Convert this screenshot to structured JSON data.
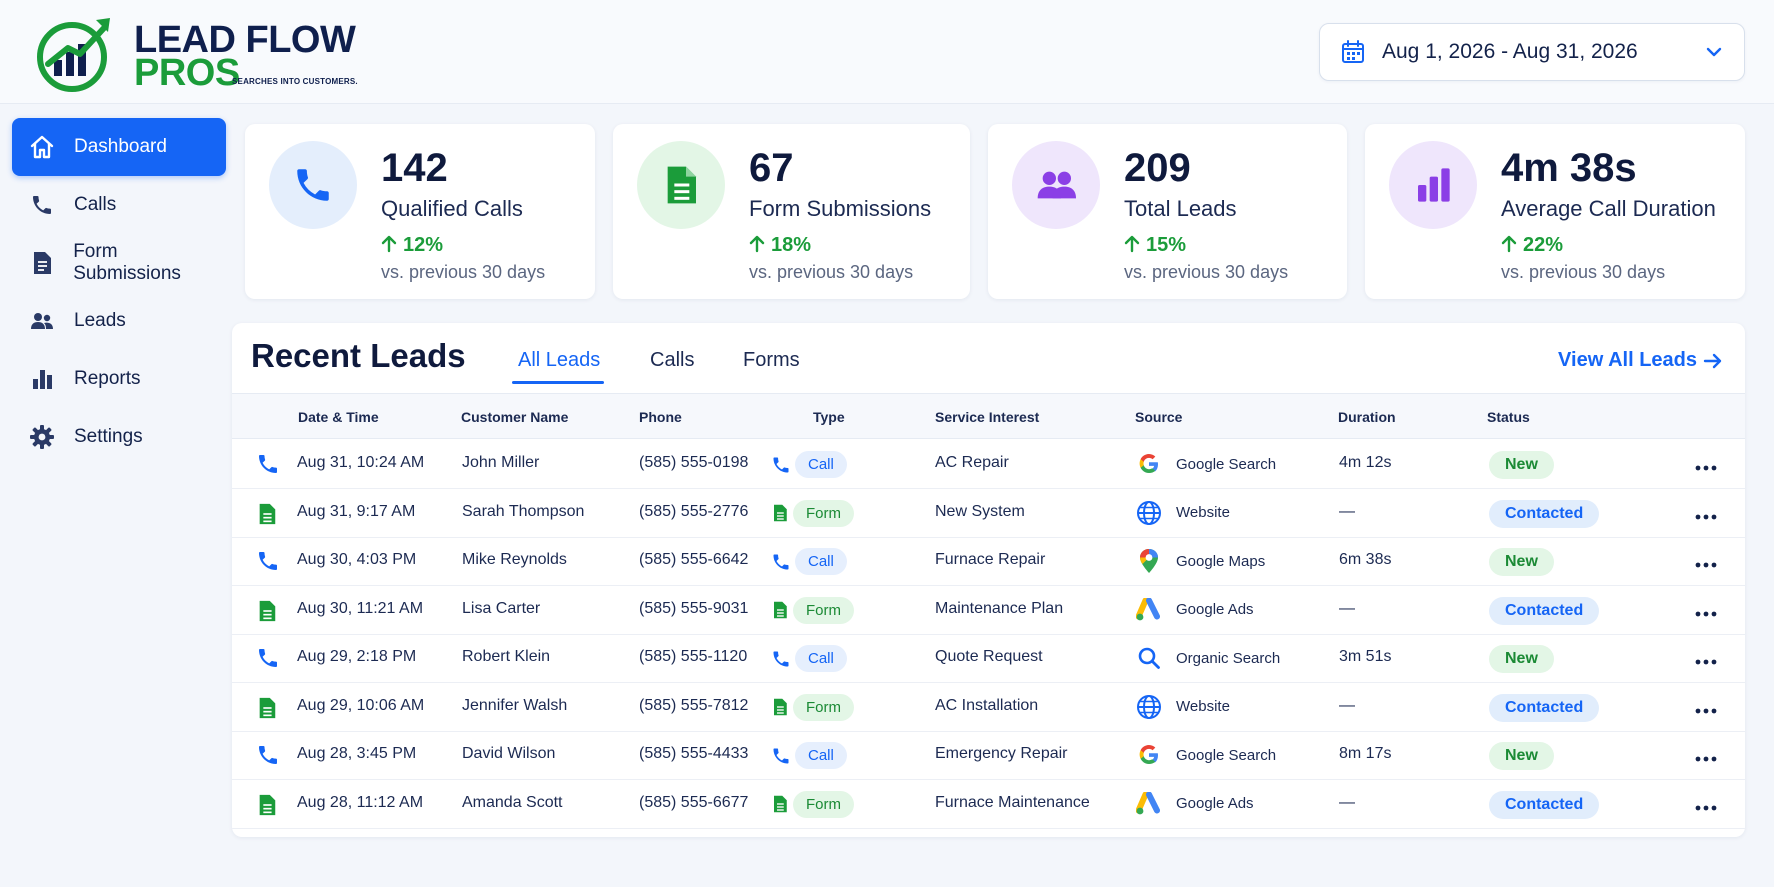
{
  "brand": {
    "line1": "LEAD FLOW",
    "line2": "PROS",
    "tagline": "SEARCHES INTO CUSTOMERS."
  },
  "date_range": {
    "label": "Aug 1, 2026 - Aug 31, 2026"
  },
  "sidebar": {
    "items": [
      {
        "label": "Dashboard",
        "icon": "home-icon",
        "active": true
      },
      {
        "label": "Calls",
        "icon": "phone-icon"
      },
      {
        "label": "Form Submissions",
        "icon": "document-icon"
      },
      {
        "label": "Leads",
        "icon": "users-icon"
      },
      {
        "label": "Reports",
        "icon": "bar-chart-icon"
      },
      {
        "label": "Settings",
        "icon": "gear-icon"
      }
    ]
  },
  "stats": [
    {
      "value": "142",
      "label": "Qualified Calls",
      "change": "12%",
      "comparison": "vs. previous 30 days",
      "icon": "phone-icon",
      "color": "#1565f5"
    },
    {
      "value": "67",
      "label": "Form Submissions",
      "change": "18%",
      "comparison": "vs. previous 30 days",
      "icon": "document-icon",
      "color": "#1b9c3a"
    },
    {
      "value": "209",
      "label": "Total Leads",
      "change": "15%",
      "comparison": "vs. previous 30 days",
      "icon": "users-icon",
      "color": "#8b3fe6"
    },
    {
      "value": "4m 38s",
      "label": "Average Call Duration",
      "change": "22%",
      "comparison": "vs. previous 30 days",
      "icon": "bar-chart-icon",
      "color": "#8b3fe6"
    }
  ],
  "recent_leads": {
    "title": "Recent Leads",
    "tabs": [
      "All Leads",
      "Calls",
      "Forms"
    ],
    "active_tab": "All Leads",
    "view_all": "View All Leads",
    "columns": [
      "Date & Time",
      "Customer Name",
      "Phone",
      "Type",
      "Service Interest",
      "Source",
      "Duration",
      "Status"
    ],
    "rows": [
      {
        "kind": "call",
        "datetime": "Aug 31, 10:24 AM",
        "name": "John Miller",
        "phone": "(585) 555-0198",
        "type": "Call",
        "service": "AC Repair",
        "source": "Google Search",
        "source_icon": "google-icon",
        "duration": "4m 12s",
        "status": "New"
      },
      {
        "kind": "form",
        "datetime": "Aug 31, 9:17 AM",
        "name": "Sarah Thompson",
        "phone": "(585) 555-2776",
        "type": "Form",
        "service": "New System",
        "source": "Website",
        "source_icon": "globe-icon",
        "duration": "—",
        "status": "Contacted"
      },
      {
        "kind": "call",
        "datetime": "Aug 30, 4:03 PM",
        "name": "Mike Reynolds",
        "phone": "(585) 555-6642",
        "type": "Call",
        "service": "Furnace Repair",
        "source": "Google Maps",
        "source_icon": "map-pin-icon",
        "duration": "6m 38s",
        "status": "New"
      },
      {
        "kind": "form",
        "datetime": "Aug 30, 11:21 AM",
        "name": "Lisa Carter",
        "phone": "(585) 555-9031",
        "type": "Form",
        "service": "Maintenance Plan",
        "source": "Google Ads",
        "source_icon": "google-ads-icon",
        "duration": "—",
        "status": "Contacted"
      },
      {
        "kind": "call",
        "datetime": "Aug 29, 2:18 PM",
        "name": "Robert Klein",
        "phone": "(585) 555-1120",
        "type": "Call",
        "service": "Quote Request",
        "source": "Organic Search",
        "source_icon": "search-icon",
        "duration": "3m 51s",
        "status": "New"
      },
      {
        "kind": "form",
        "datetime": "Aug 29, 10:06 AM",
        "name": "Jennifer Walsh",
        "phone": "(585) 555-7812",
        "type": "Form",
        "service": "AC Installation",
        "source": "Website",
        "source_icon": "globe-icon",
        "duration": "—",
        "status": "Contacted"
      },
      {
        "kind": "call",
        "datetime": "Aug 28, 3:45 PM",
        "name": "David Wilson",
        "phone": "(585) 555-4433",
        "type": "Call",
        "service": "Emergency Repair",
        "source": "Google Search",
        "source_icon": "google-icon",
        "duration": "8m 17s",
        "status": "New"
      },
      {
        "kind": "form",
        "datetime": "Aug 28, 11:12 AM",
        "name": "Amanda Scott",
        "phone": "(585) 555-6677",
        "type": "Form",
        "service": "Furnace Maintenance",
        "source": "Google Ads",
        "source_icon": "google-ads-icon",
        "duration": "—",
        "status": "Contacted"
      }
    ]
  },
  "colors": {
    "accent": "#1565f5",
    "success": "#1b9c3a",
    "purple": "#8b3fe6"
  }
}
